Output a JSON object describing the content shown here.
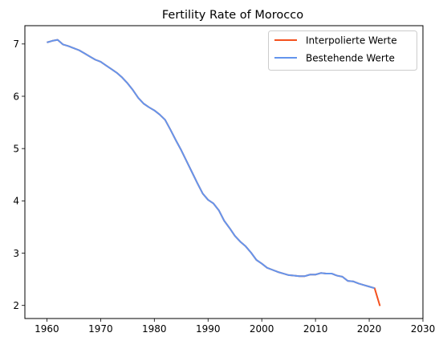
{
  "chart_data": {
    "type": "line",
    "title": "Fertility Rate of Morocco",
    "xlabel": "",
    "ylabel": "",
    "xlim": [
      1955.9,
      2030
    ],
    "ylim": [
      1.75,
      7.35
    ],
    "xticks": [
      1960,
      1970,
      1980,
      1990,
      2000,
      2010,
      2020,
      2030
    ],
    "yticks": [
      2,
      3,
      4,
      5,
      6,
      7
    ],
    "grid": false,
    "legend_position": "top-right",
    "series": [
      {
        "name": "Interpolierte Werte",
        "color": "#f4511e",
        "x": [
          1960,
          1961,
          1962,
          1963,
          1964,
          1965,
          1966,
          1967,
          1968,
          1969,
          1970,
          1971,
          1972,
          1973,
          1974,
          1975,
          1976,
          1977,
          1978,
          1979,
          1980,
          1981,
          1982,
          1983,
          1984,
          1985,
          1986,
          1987,
          1988,
          1989,
          1990,
          1991,
          1992,
          1993,
          1994,
          1995,
          1996,
          1997,
          1998,
          1999,
          2000,
          2001,
          2002,
          2003,
          2004,
          2005,
          2006,
          2007,
          2008,
          2009,
          2010,
          2011,
          2012,
          2013,
          2014,
          2015,
          2016,
          2017,
          2018,
          2019,
          2020,
          2021,
          2022
        ],
        "y": [
          7.03,
          7.06,
          7.08,
          6.99,
          6.96,
          6.92,
          6.88,
          6.82,
          6.76,
          6.7,
          6.66,
          6.59,
          6.52,
          6.45,
          6.36,
          6.25,
          6.12,
          5.97,
          5.86,
          5.79,
          5.73,
          5.65,
          5.55,
          5.36,
          5.16,
          4.97,
          4.76,
          4.55,
          4.34,
          4.14,
          4.02,
          3.95,
          3.82,
          3.62,
          3.48,
          3.33,
          3.22,
          3.13,
          3.01,
          2.87,
          2.8,
          2.72,
          2.68,
          2.64,
          2.61,
          2.58,
          2.57,
          2.56,
          2.56,
          2.59,
          2.59,
          2.62,
          2.61,
          2.61,
          2.57,
          2.55,
          2.47,
          2.46,
          2.42,
          2.39,
          2.36,
          2.33,
          1.99
        ]
      },
      {
        "name": "Bestehende Werte",
        "color": "#6495ed",
        "x": [
          1960,
          1961,
          1962,
          1963,
          1964,
          1965,
          1966,
          1967,
          1968,
          1969,
          1970,
          1971,
          1972,
          1973,
          1974,
          1975,
          1976,
          1977,
          1978,
          1979,
          1980,
          1981,
          1982,
          1983,
          1984,
          1985,
          1986,
          1987,
          1988,
          1989,
          1990,
          1991,
          1992,
          1993,
          1994,
          1995,
          1996,
          1997,
          1998,
          1999,
          2000,
          2001,
          2002,
          2003,
          2004,
          2005,
          2006,
          2007,
          2008,
          2009,
          2010,
          2011,
          2012,
          2013,
          2014,
          2015,
          2016,
          2017,
          2018,
          2019,
          2020,
          2021
        ],
        "y": [
          7.03,
          7.06,
          7.08,
          6.99,
          6.96,
          6.92,
          6.88,
          6.82,
          6.76,
          6.7,
          6.66,
          6.59,
          6.52,
          6.45,
          6.36,
          6.25,
          6.12,
          5.97,
          5.86,
          5.79,
          5.73,
          5.65,
          5.55,
          5.36,
          5.16,
          4.97,
          4.76,
          4.55,
          4.34,
          4.14,
          4.02,
          3.95,
          3.82,
          3.62,
          3.48,
          3.33,
          3.22,
          3.13,
          3.01,
          2.87,
          2.8,
          2.72,
          2.68,
          2.64,
          2.61,
          2.58,
          2.57,
          2.56,
          2.56,
          2.59,
          2.59,
          2.62,
          2.61,
          2.61,
          2.57,
          2.55,
          2.47,
          2.46,
          2.42,
          2.39,
          2.36,
          2.33
        ]
      }
    ]
  }
}
